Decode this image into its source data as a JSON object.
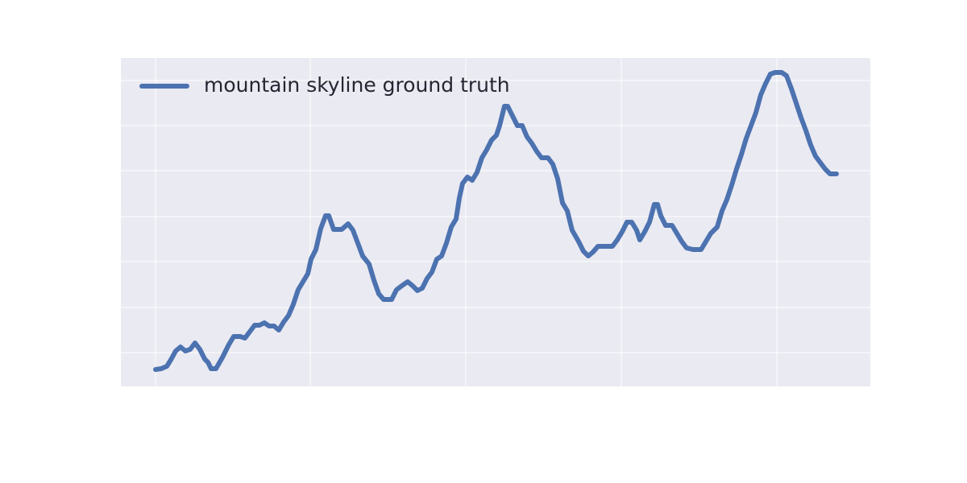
{
  "chart_data": {
    "type": "line",
    "xlim": [
      150,
      1080
    ],
    "xticks": [
      193,
      385,
      578,
      771,
      964
    ],
    "ylim": [
      0,
      408
    ],
    "yticks": [
      42,
      98,
      155,
      211,
      268,
      324,
      380
    ],
    "grid": true,
    "legend": "upper left",
    "series": [
      {
        "name": "mountain skyline ground truth",
        "color": "#4c72b0",
        "x": [
          193,
          200,
          207,
          212,
          218,
          224,
          230,
          236,
          242,
          248,
          254,
          258,
          262,
          268,
          276,
          284,
          290,
          298,
          304,
          310,
          316,
          322,
          328,
          334,
          340,
          346,
          352,
          358,
          364,
          370,
          376,
          382,
          386,
          392,
          398,
          404,
          408,
          414,
          424,
          432,
          438,
          444,
          450,
          458,
          464,
          470,
          476,
          486,
          492,
          500,
          506,
          512,
          518,
          524,
          530,
          536,
          542,
          548,
          554,
          560,
          566,
          570,
          574,
          580,
          586,
          592,
          598,
          604,
          610,
          616,
          620,
          626,
          630,
          636,
          642,
          648,
          654,
          660,
          666,
          672,
          680,
          686,
          692,
          698,
          704,
          710,
          718,
          724,
          730,
          736,
          742,
          748,
          754,
          760,
          766,
          772,
          778,
          784,
          790,
          794,
          800,
          806,
          812,
          816,
          820,
          826,
          834,
          840,
          846,
          852,
          860,
          870,
          876,
          882,
          890,
          896,
          902,
          908,
          914,
          920,
          926,
          932,
          938,
          944,
          950,
          956,
          962,
          970,
          976,
          982,
          988,
          994,
          1000,
          1006,
          1012,
          1018,
          1024,
          1030,
          1038
        ],
        "values": [
          21,
          22,
          25,
          33,
          44,
          49,
          44,
          46,
          54,
          46,
          34,
          30,
          22,
          22,
          36,
          52,
          62,
          62,
          60,
          68,
          76,
          76,
          79,
          75,
          75,
          70,
          80,
          88,
          102,
          120,
          130,
          140,
          158,
          170,
          196,
          212,
          212,
          195,
          195,
          202,
          194,
          178,
          162,
          152,
          132,
          115,
          108,
          108,
          120,
          126,
          130,
          125,
          119,
          122,
          134,
          142,
          158,
          162,
          178,
          198,
          208,
          234,
          252,
          260,
          256,
          266,
          284,
          294,
          306,
          312,
          324,
          348,
          348,
          336,
          324,
          324,
          310,
          302,
          292,
          284,
          284,
          276,
          258,
          228,
          218,
          194,
          180,
          168,
          162,
          167,
          174,
          174,
          174,
          174,
          182,
          192,
          204,
          204,
          194,
          182,
          192,
          204,
          226,
          226,
          212,
          200,
          200,
          190,
          180,
          172,
          170,
          170,
          180,
          190,
          198,
          218,
          232,
          250,
          270,
          288,
          308,
          324,
          340,
          362,
          376,
          388,
          390,
          390,
          386,
          370,
          352,
          334,
          318,
          300,
          286,
          278,
          270,
          264,
          264
        ]
      }
    ]
  }
}
